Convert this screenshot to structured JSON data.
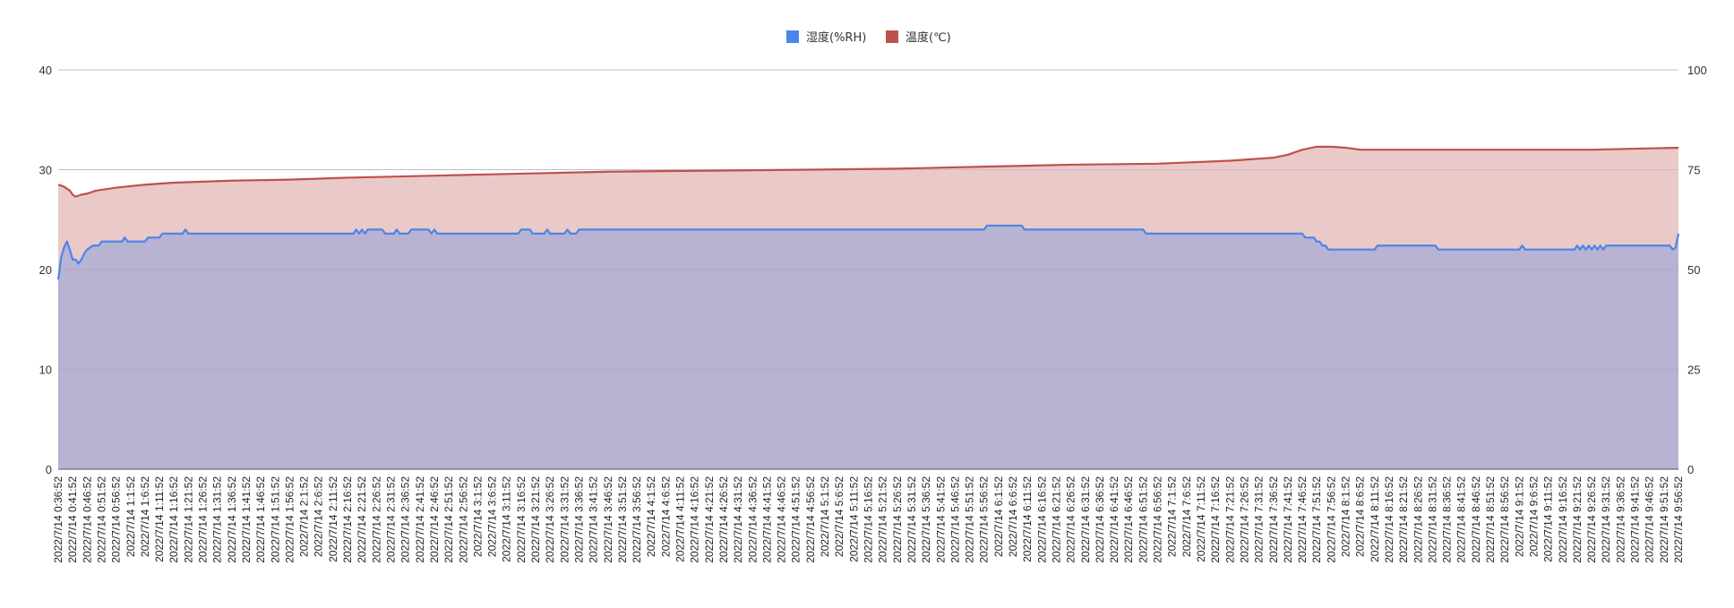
{
  "chart_data": {
    "type": "area",
    "legend_position": "top-center",
    "grid": true,
    "title": "",
    "xlabel": "",
    "ylabel_left": "",
    "ylabel_right": "",
    "y_left": {
      "ticks": [
        0,
        10,
        20,
        30,
        40
      ],
      "ylim": [
        0,
        40
      ]
    },
    "y_right": {
      "ticks": [
        0,
        25,
        50,
        75,
        100
      ],
      "ylim": [
        0,
        100
      ]
    },
    "colors": {
      "humidity_line": "#4a86e8",
      "temperature_line": "#c0504d",
      "temperature_fill": "#eac9c9",
      "humidity_fill": "#b8b2d3",
      "grid": "#cfcfcf"
    },
    "x_start": "2022/7/14 0:36:52",
    "x_end": "2022/7/14 9:56:52",
    "x_tick_labels": [
      "2022/7/14 0:36:52",
      "2022/7/14 0:41:52",
      "2022/7/14 0:46:52",
      "2022/7/14 0:51:52",
      "2022/7/14 0:56:52",
      "2022/7/14 1:1:52",
      "2022/7/14 1:6:52",
      "2022/7/14 1:11:52",
      "2022/7/14 1:16:52",
      "2022/7/14 1:21:52",
      "2022/7/14 1:26:52",
      "2022/7/14 1:31:52",
      "2022/7/14 1:36:52",
      "2022/7/14 1:41:52",
      "2022/7/14 1:46:52",
      "2022/7/14 1:51:52",
      "2022/7/14 1:56:52",
      "2022/7/14 2:1:52",
      "2022/7/14 2:6:52",
      "2022/7/14 2:11:52",
      "2022/7/14 2:16:52",
      "2022/7/14 2:21:52",
      "2022/7/14 2:26:52",
      "2022/7/14 2:31:52",
      "2022/7/14 2:36:52",
      "2022/7/14 2:41:52",
      "2022/7/14 2:46:52",
      "2022/7/14 2:51:52",
      "2022/7/14 2:56:52",
      "2022/7/14 3:1:52",
      "2022/7/14 3:6:52",
      "2022/7/14 3:11:52",
      "2022/7/14 3:16:52",
      "2022/7/14 3:21:52",
      "2022/7/14 3:26:52",
      "2022/7/14 3:31:52",
      "2022/7/14 3:36:52",
      "2022/7/14 3:41:52",
      "2022/7/14 3:46:52",
      "2022/7/14 3:51:52",
      "2022/7/14 3:56:52",
      "2022/7/14 4:1:52",
      "2022/7/14 4:6:52",
      "2022/7/14 4:11:52",
      "2022/7/14 4:16:52",
      "2022/7/14 4:21:52",
      "2022/7/14 4:26:52",
      "2022/7/14 4:31:52",
      "2022/7/14 4:36:52",
      "2022/7/14 4:41:52",
      "2022/7/14 4:46:52",
      "2022/7/14 4:51:52",
      "2022/7/14 4:56:52",
      "2022/7/14 5:1:52",
      "2022/7/14 5:6:52",
      "2022/7/14 5:11:52",
      "2022/7/14 5:16:52",
      "2022/7/14 5:21:52",
      "2022/7/14 5:26:52",
      "2022/7/14 5:31:52",
      "2022/7/14 5:36:52",
      "2022/7/14 5:41:52",
      "2022/7/14 5:46:52",
      "2022/7/14 5:51:52",
      "2022/7/14 5:56:52",
      "2022/7/14 6:1:52",
      "2022/7/14 6:6:52",
      "2022/7/14 6:11:52",
      "2022/7/14 6:16:52",
      "2022/7/14 6:21:52",
      "2022/7/14 6:26:52",
      "2022/7/14 6:31:52",
      "2022/7/14 6:36:52",
      "2022/7/14 6:41:52",
      "2022/7/14 6:46:52",
      "2022/7/14 6:51:52",
      "2022/7/14 6:56:52",
      "2022/7/14 7:1:52",
      "2022/7/14 7:6:52",
      "2022/7/14 7:11:52",
      "2022/7/14 7:16:52",
      "2022/7/14 7:21:52",
      "2022/7/14 7:26:52",
      "2022/7/14 7:31:52",
      "2022/7/14 7:36:52",
      "2022/7/14 7:41:52",
      "2022/7/14 7:46:52",
      "2022/7/14 7:51:52",
      "2022/7/14 7:56:52",
      "2022/7/14 8:1:52",
      "2022/7/14 8:6:52",
      "2022/7/14 8:11:52",
      "2022/7/14 8:16:52",
      "2022/7/14 8:21:52",
      "2022/7/14 8:26:52",
      "2022/7/14 8:31:52",
      "2022/7/14 8:36:52",
      "2022/7/14 8:41:52",
      "2022/7/14 8:46:52",
      "2022/7/14 8:51:52",
      "2022/7/14 8:56:52",
      "2022/7/14 9:1:52",
      "2022/7/14 9:6:52",
      "2022/7/14 9:11:52",
      "2022/7/14 9:16:52",
      "2022/7/14 9:21:52",
      "2022/7/14 9:26:52",
      "2022/7/14 9:31:52",
      "2022/7/14 9:36:52",
      "2022/7/14 9:41:52",
      "2022/7/14 9:46:52",
      "2022/7/14 9:51:52",
      "2022/7/14 9:56:52"
    ],
    "series": [
      {
        "name": "湿度(%RH)",
        "axis": "right",
        "points": [
          [
            "2022/7/14 0:36:52",
            47.5
          ],
          [
            "2022/7/14 0:37:52",
            53
          ],
          [
            "2022/7/14 0:38:52",
            55.5
          ],
          [
            "2022/7/14 0:39:52",
            57
          ],
          [
            "2022/7/14 0:40:52",
            55
          ],
          [
            "2022/7/14 0:41:52",
            52.5
          ],
          [
            "2022/7/14 0:42:52",
            52.5
          ],
          [
            "2022/7/14 0:43:52",
            51.5
          ],
          [
            "2022/7/14 0:44:52",
            52.5
          ],
          [
            "2022/7/14 0:45:52",
            54
          ],
          [
            "2022/7/14 0:46:52",
            55
          ],
          [
            "2022/7/14 0:48:52",
            56
          ],
          [
            "2022/7/14 0:50:52",
            56
          ],
          [
            "2022/7/14 0:51:52",
            57
          ],
          [
            "2022/7/14 0:56:52",
            57
          ],
          [
            "2022/7/14 0:58:52",
            57
          ],
          [
            "2022/7/14 0:59:52",
            58
          ],
          [
            "2022/7/14 1:0:52",
            57
          ],
          [
            "2022/7/14 1:6:52",
            57
          ],
          [
            "2022/7/14 1:7:52",
            58
          ],
          [
            "2022/7/14 1:11:52",
            58
          ],
          [
            "2022/7/14 1:12:52",
            59
          ],
          [
            "2022/7/14 1:16:52",
            59
          ],
          [
            "2022/7/14 1:19:52",
            59
          ],
          [
            "2022/7/14 1:20:52",
            60
          ],
          [
            "2022/7/14 1:21:52",
            59
          ],
          [
            "2022/7/14 2:16:52",
            59
          ],
          [
            "2022/7/14 2:18:52",
            59
          ],
          [
            "2022/7/14 2:19:52",
            60
          ],
          [
            "2022/7/14 2:20:52",
            59
          ],
          [
            "2022/7/14 2:21:52",
            60
          ],
          [
            "2022/7/14 2:22:52",
            59
          ],
          [
            "2022/7/14 2:23:52",
            60
          ],
          [
            "2022/7/14 2:28:52",
            60
          ],
          [
            "2022/7/14 2:29:52",
            59
          ],
          [
            "2022/7/14 2:32:52",
            59
          ],
          [
            "2022/7/14 2:33:52",
            60
          ],
          [
            "2022/7/14 2:34:52",
            59
          ],
          [
            "2022/7/14 2:37:52",
            59
          ],
          [
            "2022/7/14 2:38:52",
            60
          ],
          [
            "2022/7/14 2:44:52",
            60
          ],
          [
            "2022/7/14 2:45:52",
            59
          ],
          [
            "2022/7/14 2:46:52",
            60
          ],
          [
            "2022/7/14 2:47:52",
            59
          ],
          [
            "2022/7/14 3:15:52",
            59
          ],
          [
            "2022/7/14 3:16:52",
            60
          ],
          [
            "2022/7/14 3:19:52",
            60
          ],
          [
            "2022/7/14 3:20:52",
            59
          ],
          [
            "2022/7/14 3:24:52",
            59
          ],
          [
            "2022/7/14 3:25:52",
            60
          ],
          [
            "2022/7/14 3:26:52",
            59
          ],
          [
            "2022/7/14 3:31:52",
            59
          ],
          [
            "2022/7/14 3:32:52",
            60
          ],
          [
            "2022/7/14 3:33:52",
            59
          ],
          [
            "2022/7/14 3:35:52",
            59
          ],
          [
            "2022/7/14 3:36:52",
            60
          ],
          [
            "2022/7/14 5:56:52",
            60
          ],
          [
            "2022/7/14 5:57:52",
            61
          ],
          [
            "2022/7/14 6:9:52",
            61
          ],
          [
            "2022/7/14 6:10:52",
            60
          ],
          [
            "2022/7/14 6:51:52",
            60
          ],
          [
            "2022/7/14 6:52:52",
            59
          ],
          [
            "2022/7/14 7:46:52",
            59
          ],
          [
            "2022/7/14 7:47:52",
            58
          ],
          [
            "2022/7/14 7:50:52",
            58
          ],
          [
            "2022/7/14 7:51:52",
            57
          ],
          [
            "2022/7/14 7:52:52",
            57
          ],
          [
            "2022/7/14 7:53:52",
            56
          ],
          [
            "2022/7/14 7:54:52",
            56
          ],
          [
            "2022/7/14 7:55:52",
            55
          ],
          [
            "2022/7/14 8:11:52",
            55
          ],
          [
            "2022/7/14 8:12:52",
            56
          ],
          [
            "2022/7/14 8:32:52",
            56
          ],
          [
            "2022/7/14 8:33:52",
            55
          ],
          [
            "2022/7/14 9:1:52",
            55
          ],
          [
            "2022/7/14 9:2:52",
            56
          ],
          [
            "2022/7/14 9:3:52",
            55
          ],
          [
            "2022/7/14 9:20:52",
            55
          ],
          [
            "2022/7/14 9:21:52",
            56
          ],
          [
            "2022/7/14 9:22:52",
            55
          ],
          [
            "2022/7/14 9:23:52",
            56
          ],
          [
            "2022/7/14 9:24:52",
            55
          ],
          [
            "2022/7/14 9:25:52",
            56
          ],
          [
            "2022/7/14 9:26:52",
            55
          ],
          [
            "2022/7/14 9:27:52",
            56
          ],
          [
            "2022/7/14 9:28:52",
            55
          ],
          [
            "2022/7/14 9:29:52",
            56
          ],
          [
            "2022/7/14 9:30:52",
            55
          ],
          [
            "2022/7/14 9:31:52",
            56
          ],
          [
            "2022/7/14 9:53:52",
            56
          ],
          [
            "2022/7/14 9:54:52",
            55
          ],
          [
            "2022/7/14 9:55:52",
            55.5
          ],
          [
            "2022/7/14 9:56:52",
            59
          ]
        ]
      },
      {
        "name": "温度(℃)",
        "axis": "left",
        "points": [
          [
            "2022/7/14 0:36:52",
            28.5
          ],
          [
            "2022/7/14 0:38:52",
            28.3
          ],
          [
            "2022/7/14 0:40:52",
            27.9
          ],
          [
            "2022/7/14 0:41:52",
            27.5
          ],
          [
            "2022/7/14 0:42:52",
            27.3
          ],
          [
            "2022/7/14 0:44:52",
            27.5
          ],
          [
            "2022/7/14 0:46:52",
            27.6
          ],
          [
            "2022/7/14 0:49:52",
            27.9
          ],
          [
            "2022/7/14 0:56:52",
            28.2
          ],
          [
            "2022/7/14 1:6:52",
            28.5
          ],
          [
            "2022/7/14 1:16:52",
            28.7
          ],
          [
            "2022/7/14 1:36:52",
            28.9
          ],
          [
            "2022/7/14 1:56:52",
            29.0
          ],
          [
            "2022/7/14 2:16:52",
            29.2
          ],
          [
            "2022/7/14 2:46:52",
            29.4
          ],
          [
            "2022/7/14 3:16:52",
            29.6
          ],
          [
            "2022/7/14 3:46:52",
            29.8
          ],
          [
            "2022/7/14 4:21:52",
            29.9
          ],
          [
            "2022/7/14 4:56:52",
            30.0
          ],
          [
            "2022/7/14 5:26:52",
            30.1
          ],
          [
            "2022/7/14 5:56:52",
            30.3
          ],
          [
            "2022/7/14 6:26:52",
            30.5
          ],
          [
            "2022/7/14 6:56:52",
            30.6
          ],
          [
            "2022/7/14 7:21:52",
            30.9
          ],
          [
            "2022/7/14 7:36:52",
            31.2
          ],
          [
            "2022/7/14 7:41:52",
            31.5
          ],
          [
            "2022/7/14 7:46:52",
            32.0
          ],
          [
            "2022/7/14 7:51:52",
            32.3
          ],
          [
            "2022/7/14 7:56:52",
            32.3
          ],
          [
            "2022/7/14 8:1:52",
            32.2
          ],
          [
            "2022/7/14 8:6:52",
            32.0
          ],
          [
            "2022/7/14 8:26:52",
            32.0
          ],
          [
            "2022/7/14 8:56:52",
            32.0
          ],
          [
            "2022/7/14 9:26:52",
            32.0
          ],
          [
            "2022/7/14 9:41:52",
            32.1
          ],
          [
            "2022/7/14 9:56:52",
            32.2
          ]
        ]
      }
    ]
  }
}
